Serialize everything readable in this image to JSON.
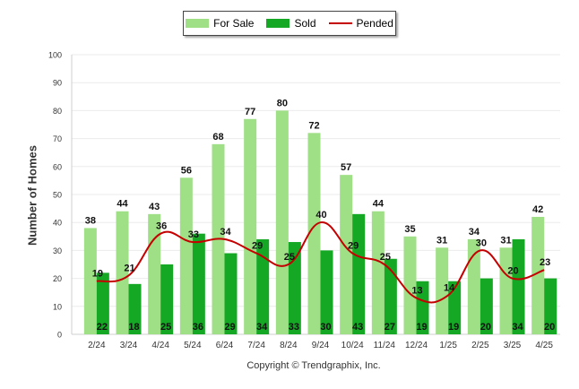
{
  "legend": {
    "for_sale": "For Sale",
    "sold": "Sold",
    "pended": "Pended"
  },
  "copyright": "Copyright © Trendgraphix, Inc.",
  "colors": {
    "for_sale": "#9fdf85",
    "sold": "#14a824",
    "pended": "#c40000"
  },
  "chart_data": {
    "type": "bar",
    "ylabel": "Number of Homes",
    "ylim": [
      0,
      100
    ],
    "yticks": [
      0,
      10,
      20,
      30,
      40,
      50,
      60,
      70,
      80,
      90,
      100
    ],
    "grid": true,
    "legend_position": "top-center",
    "categories": [
      "2/24",
      "3/24",
      "4/24",
      "5/24",
      "6/24",
      "7/24",
      "8/24",
      "9/24",
      "10/24",
      "11/24",
      "12/24",
      "1/25",
      "2/25",
      "3/25",
      "4/25"
    ],
    "series": [
      {
        "name": "For Sale",
        "type": "bar",
        "values": [
          38,
          44,
          43,
          56,
          68,
          77,
          80,
          72,
          57,
          44,
          35,
          31,
          34,
          31,
          42
        ]
      },
      {
        "name": "Sold",
        "type": "bar",
        "values": [
          22,
          18,
          25,
          36,
          29,
          34,
          33,
          30,
          43,
          27,
          19,
          19,
          20,
          34,
          20
        ]
      },
      {
        "name": "Pended",
        "type": "line",
        "values": [
          19,
          21,
          36,
          33,
          34,
          29,
          25,
          40,
          29,
          25,
          13,
          14,
          30,
          20,
          23
        ]
      }
    ]
  }
}
